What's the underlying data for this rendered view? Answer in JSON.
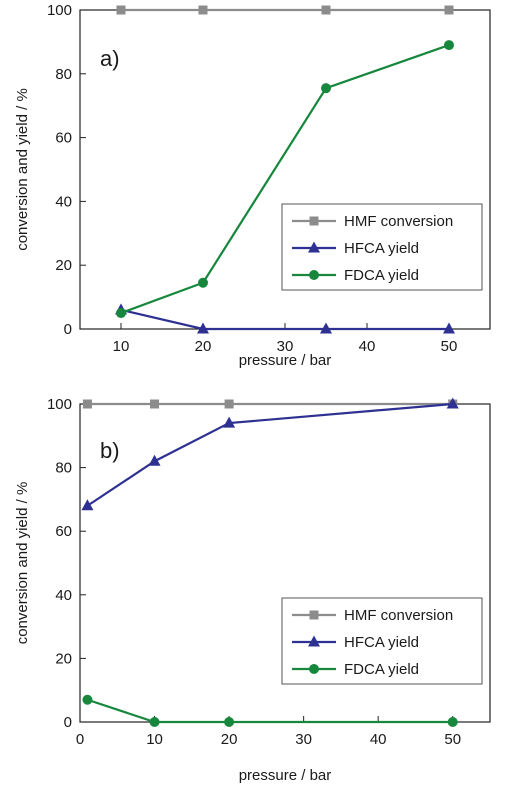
{
  "chart_data": [
    {
      "type": "line",
      "panel_label": "a)",
      "xlabel": "pressure / bar",
      "ylabel": "conversion and yield / %",
      "xlim": [
        5,
        55
      ],
      "ylim": [
        0,
        100
      ],
      "xticks": [
        10,
        20,
        30,
        40,
        50
      ],
      "yticks": [
        0,
        20,
        40,
        60,
        80,
        100
      ],
      "legend_position": "center-right",
      "grid": false,
      "series": [
        {
          "name": "HMF conversion",
          "color": "#8c8c8c",
          "marker": "square",
          "x": [
            10,
            20,
            35,
            50
          ],
          "y": [
            100,
            100,
            100,
            100
          ]
        },
        {
          "name": "HFCA yield",
          "color": "#2e3192",
          "marker": "triangle",
          "x": [
            10,
            20,
            35,
            50
          ],
          "y": [
            6,
            0,
            0,
            0
          ]
        },
        {
          "name": "FDCA yield",
          "color": "#16873c",
          "marker": "circle",
          "x": [
            10,
            20,
            35,
            50
          ],
          "y": [
            5,
            14.5,
            75.5,
            89
          ]
        }
      ]
    },
    {
      "type": "line",
      "panel_label": "b)",
      "xlabel": "pressure / bar",
      "ylabel": "conversion and yield / %",
      "xlim": [
        0,
        55
      ],
      "ylim": [
        0,
        100
      ],
      "xticks": [
        0,
        10,
        20,
        30,
        40,
        50
      ],
      "yticks": [
        0,
        20,
        40,
        60,
        80,
        100
      ],
      "legend_position": "lower-right",
      "grid": false,
      "series": [
        {
          "name": "HMF conversion",
          "color": "#8c8c8c",
          "marker": "square",
          "x": [
            1,
            10,
            20,
            50
          ],
          "y": [
            100,
            100,
            100,
            100
          ]
        },
        {
          "name": "HFCA yield",
          "color": "#2e3192",
          "marker": "triangle",
          "x": [
            1,
            10,
            20,
            50
          ],
          "y": [
            68,
            82,
            94,
            100
          ]
        },
        {
          "name": "FDCA yield",
          "color": "#16873c",
          "marker": "circle",
          "x": [
            1,
            10,
            20,
            50
          ],
          "y": [
            7,
            0,
            0,
            0
          ]
        }
      ]
    }
  ]
}
